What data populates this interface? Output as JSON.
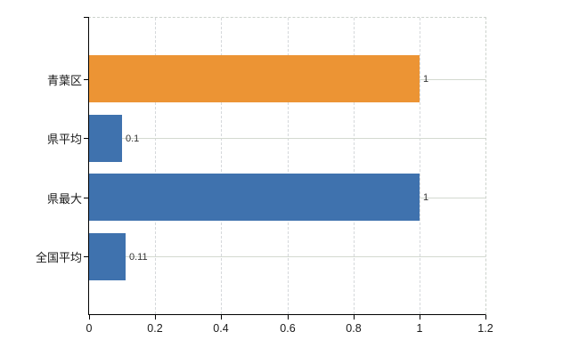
{
  "chart_data": {
    "type": "bar",
    "orientation": "horizontal",
    "title": "",
    "categories": [
      "青葉区",
      "県平均",
      "県最大",
      "全国平均"
    ],
    "values": [
      1,
      0.1,
      1,
      0.11
    ],
    "value_labels": [
      "1",
      "0.1",
      "1",
      "0.11"
    ],
    "bar_colors": [
      "#ec9434",
      "#3f72ae",
      "#3f72ae",
      "#3f72ae"
    ],
    "x_tick_values": [
      0,
      0.2,
      0.4,
      0.6,
      0.8,
      1,
      1.2
    ],
    "x_tick_labels": [
      "0",
      "0.2",
      "0.4",
      "0.6",
      "0.8",
      "1",
      "1.2"
    ],
    "xlim": [
      0,
      1.2
    ],
    "xlabel": "",
    "ylabel": "",
    "legend": "none",
    "grid": {
      "vertical": "dashed at every x tick",
      "horizontal": "solid at category centers"
    },
    "colors": {
      "background": "#ffffff",
      "axis": "#000000",
      "vertical_gridline": "#d5d8db",
      "horizontal_gridline": "#d3d9d0",
      "dashed_border": "#ccd2cc",
      "bar_orange": "#ec9434",
      "bar_blue": "#3f72ae",
      "label_text": "#1a1a1a",
      "value_label_text": "#333333"
    }
  }
}
